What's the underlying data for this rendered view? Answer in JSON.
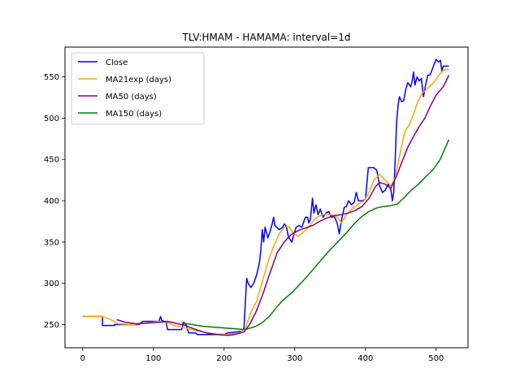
{
  "chart_data": {
    "type": "line",
    "title": "TLV:HMAM - HAMAMA: interval=1d",
    "xlabel": "",
    "ylabel": "",
    "xlim": [
      -25,
      545
    ],
    "ylim": [
      222,
      586
    ],
    "xticks": [
      0,
      100,
      200,
      300,
      400,
      500
    ],
    "yticks": [
      250,
      300,
      350,
      400,
      450,
      500,
      550
    ],
    "grid": false,
    "legend_position": "top-left",
    "series": [
      {
        "name": "Close",
        "color": "#0000ff",
        "points": [
          [
            0,
            260
          ],
          [
            28,
            260
          ],
          [
            28,
            249
          ],
          [
            45,
            249
          ],
          [
            45,
            250
          ],
          [
            80,
            250
          ],
          [
            85,
            254
          ],
          [
            108,
            254
          ],
          [
            110,
            260
          ],
          [
            112,
            255
          ],
          [
            118,
            253
          ],
          [
            120,
            244
          ],
          [
            140,
            244
          ],
          [
            143,
            253
          ],
          [
            146,
            250
          ],
          [
            150,
            240
          ],
          [
            160,
            240
          ],
          [
            162,
            238
          ],
          [
            200,
            238
          ],
          [
            205,
            240
          ],
          [
            215,
            241
          ],
          [
            225,
            242
          ],
          [
            228,
            245
          ],
          [
            232,
            306
          ],
          [
            234,
            300
          ],
          [
            238,
            295
          ],
          [
            242,
            300
          ],
          [
            246,
            310
          ],
          [
            250,
            325
          ],
          [
            252,
            340
          ],
          [
            254,
            365
          ],
          [
            256,
            350
          ],
          [
            258,
            368
          ],
          [
            262,
            355
          ],
          [
            265,
            363
          ],
          [
            268,
            372
          ],
          [
            270,
            380
          ],
          [
            272,
            370
          ],
          [
            278,
            365
          ],
          [
            283,
            368
          ],
          [
            285,
            372
          ],
          [
            288,
            369
          ],
          [
            291,
            356
          ],
          [
            296,
            350
          ],
          [
            299,
            360
          ],
          [
            302,
            368
          ],
          [
            306,
            370
          ],
          [
            310,
            368
          ],
          [
            315,
            380
          ],
          [
            318,
            380
          ],
          [
            320,
            373
          ],
          [
            322,
            378
          ],
          [
            325,
            403
          ],
          [
            327,
            385
          ],
          [
            330,
            395
          ],
          [
            333,
            383
          ],
          [
            336,
            390
          ],
          [
            340,
            380
          ],
          [
            344,
            385
          ],
          [
            348,
            387
          ],
          [
            352,
            380
          ],
          [
            356,
            381
          ],
          [
            360,
            373
          ],
          [
            363,
            360
          ],
          [
            366,
            376
          ],
          [
            370,
            392
          ],
          [
            373,
            393
          ],
          [
            376,
            400
          ],
          [
            380,
            395
          ],
          [
            384,
            398
          ],
          [
            387,
            410
          ],
          [
            390,
            400
          ],
          [
            393,
            400
          ],
          [
            396,
            400
          ],
          [
            400,
            402
          ],
          [
            404,
            440
          ],
          [
            408,
            440
          ],
          [
            412,
            440
          ],
          [
            416,
            437
          ],
          [
            420,
            418
          ],
          [
            424,
            410
          ],
          [
            428,
            413
          ],
          [
            432,
            420
          ],
          [
            436,
            413
          ],
          [
            438,
            400
          ],
          [
            440,
            410
          ],
          [
            442,
            450
          ],
          [
            444,
            495
          ],
          [
            446,
            515
          ],
          [
            448,
            526
          ],
          [
            451,
            520
          ],
          [
            454,
            521
          ],
          [
            457,
            535
          ],
          [
            460,
            543
          ],
          [
            464,
            538
          ],
          [
            466,
            545
          ],
          [
            468,
            556
          ],
          [
            470,
            540
          ],
          [
            473,
            550
          ],
          [
            476,
            545
          ],
          [
            479,
            548
          ],
          [
            482,
            526
          ],
          [
            485,
            540
          ],
          [
            488,
            552
          ],
          [
            491,
            552
          ],
          [
            494,
            558
          ],
          [
            497,
            565
          ],
          [
            500,
            571
          ],
          [
            503,
            568
          ],
          [
            506,
            570
          ],
          [
            508,
            557
          ],
          [
            510,
            563
          ],
          [
            518,
            563
          ]
        ]
      },
      {
        "name": "MA21exp (days)",
        "color": "#ffa500",
        "points": [
          [
            0,
            260
          ],
          [
            28,
            260
          ],
          [
            40,
            256
          ],
          [
            50,
            251
          ],
          [
            70,
            250
          ],
          [
            90,
            252
          ],
          [
            108,
            254
          ],
          [
            118,
            253
          ],
          [
            130,
            249
          ],
          [
            145,
            246
          ],
          [
            165,
            242
          ],
          [
            185,
            239
          ],
          [
            205,
            238
          ],
          [
            222,
            240
          ],
          [
            230,
            245
          ],
          [
            238,
            265
          ],
          [
            246,
            278
          ],
          [
            254,
            302
          ],
          [
            262,
            325
          ],
          [
            270,
            345
          ],
          [
            278,
            360
          ],
          [
            285,
            368
          ],
          [
            292,
            369
          ],
          [
            298,
            360
          ],
          [
            305,
            357
          ],
          [
            312,
            362
          ],
          [
            320,
            368
          ],
          [
            328,
            378
          ],
          [
            336,
            382
          ],
          [
            344,
            384
          ],
          [
            352,
            383
          ],
          [
            360,
            380
          ],
          [
            366,
            373
          ],
          [
            374,
            384
          ],
          [
            382,
            391
          ],
          [
            390,
            396
          ],
          [
            398,
            400
          ],
          [
            405,
            410
          ],
          [
            412,
            425
          ],
          [
            420,
            432
          ],
          [
            428,
            425
          ],
          [
            436,
            418
          ],
          [
            442,
            428
          ],
          [
            450,
            462
          ],
          [
            456,
            485
          ],
          [
            462,
            492
          ],
          [
            468,
            505
          ],
          [
            474,
            520
          ],
          [
            480,
            530
          ],
          [
            488,
            536
          ],
          [
            496,
            543
          ],
          [
            504,
            552
          ],
          [
            510,
            558
          ],
          [
            518,
            559
          ]
        ]
      },
      {
        "name": "MA50 (days)",
        "color": "#800080",
        "points": [
          [
            48,
            256
          ],
          [
            60,
            253
          ],
          [
            75,
            251
          ],
          [
            95,
            252
          ],
          [
            110,
            253
          ],
          [
            120,
            254
          ],
          [
            130,
            252
          ],
          [
            145,
            249
          ],
          [
            160,
            244
          ],
          [
            175,
            240
          ],
          [
            190,
            238
          ],
          [
            205,
            237
          ],
          [
            215,
            238
          ],
          [
            228,
            241
          ],
          [
            236,
            250
          ],
          [
            245,
            265
          ],
          [
            255,
            287
          ],
          [
            265,
            313
          ],
          [
            275,
            337
          ],
          [
            285,
            350
          ],
          [
            295,
            359
          ],
          [
            305,
            364
          ],
          [
            315,
            367
          ],
          [
            325,
            370
          ],
          [
            335,
            375
          ],
          [
            345,
            379
          ],
          [
            355,
            382
          ],
          [
            365,
            383
          ],
          [
            375,
            385
          ],
          [
            385,
            388
          ],
          [
            395,
            393
          ],
          [
            405,
            403
          ],
          [
            414,
            417
          ],
          [
            420,
            422
          ],
          [
            428,
            420
          ],
          [
            436,
            415
          ],
          [
            444,
            430
          ],
          [
            452,
            448
          ],
          [
            460,
            465
          ],
          [
            468,
            478
          ],
          [
            476,
            490
          ],
          [
            484,
            500
          ],
          [
            492,
            515
          ],
          [
            500,
            528
          ],
          [
            510,
            538
          ],
          [
            518,
            552
          ]
        ]
      },
      {
        "name": "MA150 (days)",
        "color": "#008000",
        "points": [
          [
            140,
            252
          ],
          [
            155,
            250
          ],
          [
            170,
            248
          ],
          [
            185,
            247
          ],
          [
            200,
            246
          ],
          [
            215,
            245
          ],
          [
            230,
            244
          ],
          [
            245,
            248
          ],
          [
            255,
            253
          ],
          [
            265,
            261
          ],
          [
            275,
            272
          ],
          [
            285,
            281
          ],
          [
            295,
            288
          ],
          [
            305,
            297
          ],
          [
            315,
            306
          ],
          [
            325,
            316
          ],
          [
            335,
            326
          ],
          [
            345,
            336
          ],
          [
            355,
            345
          ],
          [
            365,
            354
          ],
          [
            375,
            363
          ],
          [
            385,
            373
          ],
          [
            395,
            381
          ],
          [
            405,
            387
          ],
          [
            415,
            391
          ],
          [
            425,
            393
          ],
          [
            435,
            394
          ],
          [
            445,
            396
          ],
          [
            455,
            404
          ],
          [
            465,
            413
          ],
          [
            475,
            420
          ],
          [
            485,
            429
          ],
          [
            495,
            437
          ],
          [
            505,
            449
          ],
          [
            518,
            474
          ]
        ]
      }
    ]
  }
}
